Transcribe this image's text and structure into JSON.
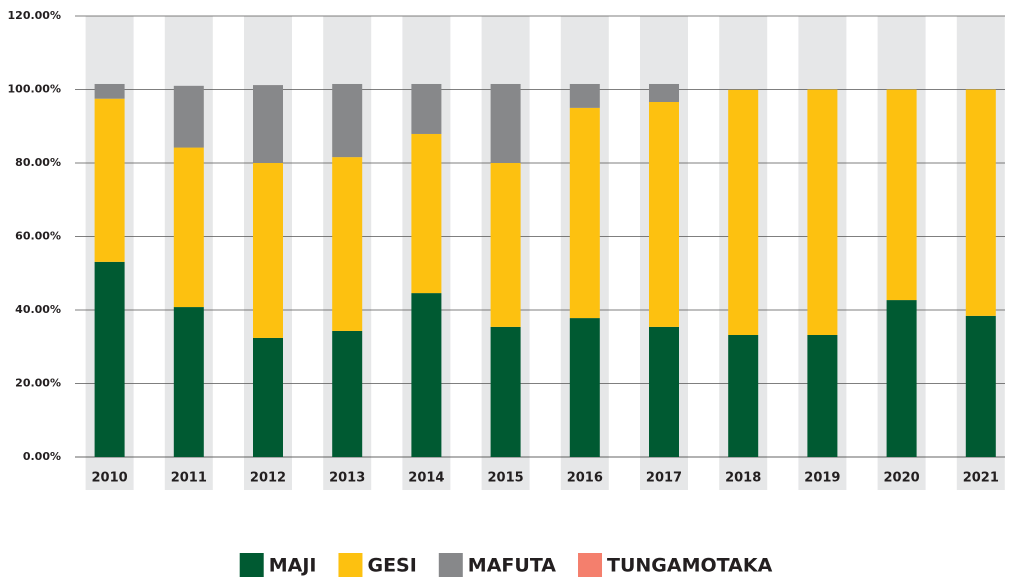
{
  "chart_data": {
    "type": "stacked_bar",
    "categories": [
      "2010",
      "2011",
      "2012",
      "2013",
      "2014",
      "2015",
      "2016",
      "2017",
      "2018",
      "2019",
      "2020",
      "2021"
    ],
    "series": [
      {
        "name": "MAJI",
        "color": "#005a32",
        "values": [
          53.1,
          40.8,
          32.4,
          34.3,
          44.6,
          35.4,
          37.8,
          35.4,
          33.2,
          33.2,
          42.7,
          38.4
        ]
      },
      {
        "name": "GESI",
        "color": "#fdc110",
        "values": [
          44.4,
          43.4,
          47.6,
          47.3,
          43.3,
          44.6,
          57.2,
          61.2,
          66.7,
          66.8,
          57.3,
          61.6
        ]
      },
      {
        "name": "MAFUTA",
        "color": "#87888a",
        "values": [
          4.0,
          16.8,
          21.2,
          19.9,
          13.6,
          21.5,
          6.5,
          4.9,
          0,
          0,
          0,
          0
        ]
      },
      {
        "name": "TUNGAMOTAKA",
        "color": "#f47f6d",
        "values": [
          0,
          0,
          0,
          0,
          0,
          0,
          0,
          0,
          0,
          0,
          0,
          0
        ]
      }
    ],
    "ylim": [
      0,
      120
    ],
    "yticks": [
      {
        "value": 0,
        "label": "0.00%"
      },
      {
        "value": 20,
        "label": "20.00%"
      },
      {
        "value": 40,
        "label": "40.00%"
      },
      {
        "value": 60,
        "label": "60.00%"
      },
      {
        "value": 80,
        "label": "80.00%"
      },
      {
        "value": 100,
        "label": "100.00%"
      },
      {
        "value": 120,
        "label": "120.00%"
      }
    ],
    "grid": true,
    "legend": "bottom"
  }
}
